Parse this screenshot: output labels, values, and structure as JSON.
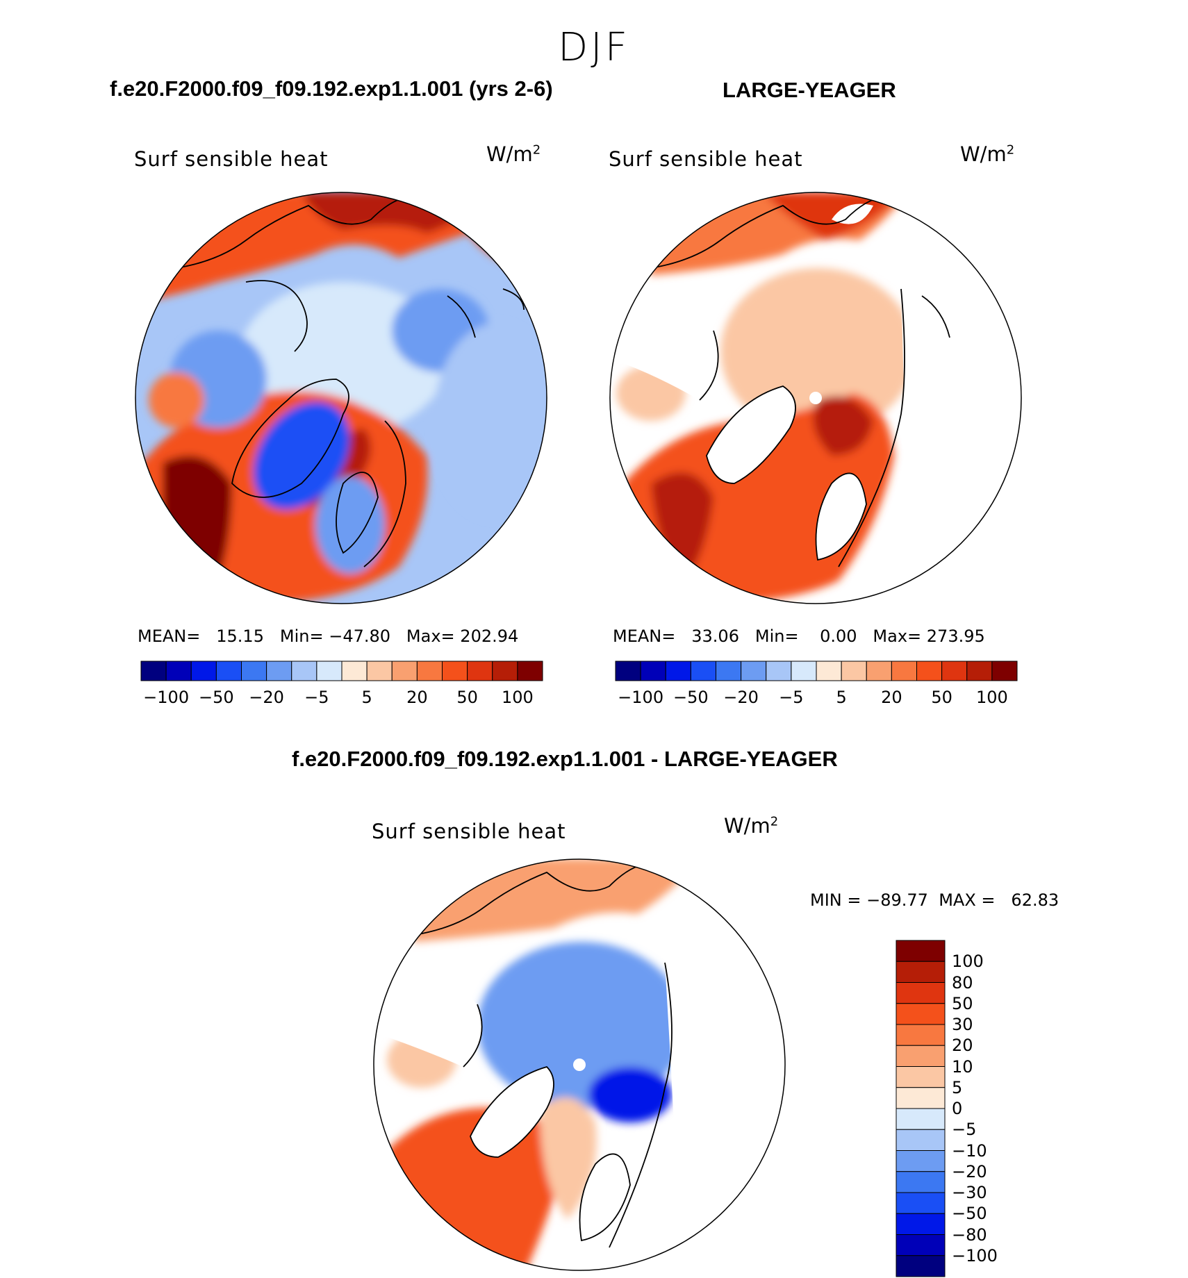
{
  "figure": {
    "season": "DJF",
    "variable": "Surf sensible heat",
    "units": "W/m",
    "units_exp": "2",
    "colors": {
      "blues": [
        "#00007f",
        "#0000b8",
        "#0018e8",
        "#1a4ff5",
        "#3c78f2",
        "#6d9cf2",
        "#a8c6f7",
        "#d7e9fb"
      ],
      "reds": [
        "#fde9d6",
        "#fbc7a4",
        "#f9a070",
        "#f87840",
        "#f4511b",
        "#df3510",
        "#b51e07",
        "#7e0000"
      ],
      "coast": "#000000"
    }
  },
  "panels": [
    {
      "title": "f.e20.F2000.f09_f09.192.exp1.1.001 (yrs 2-6)",
      "mean_label": "MEAN=",
      "mean": "15.15",
      "min_label": "Min=",
      "min": "−47.80",
      "max_label": "Max=",
      "max": "202.94",
      "colorbar_ticks": [
        "−100",
        "−50",
        "−20",
        "−5",
        "5",
        "20",
        "50",
        "100"
      ]
    },
    {
      "title": "LARGE-YEAGER",
      "mean_label": "MEAN=",
      "mean": "33.06",
      "min_label": "Min=",
      "min": "0.00",
      "max_label": "Max=",
      "max": "273.95",
      "colorbar_ticks": [
        "−100",
        "−50",
        "−20",
        "−5",
        "5",
        "20",
        "50",
        "100"
      ]
    }
  ],
  "difference": {
    "title": "f.e20.F2000.f09_f09.192.exp1.1.001 - LARGE-YEAGER",
    "min_label": "MIN =",
    "min": "−89.77",
    "max_label": "MAX =",
    "max": "62.83",
    "colorbar_levels": [
      "100",
      "80",
      "50",
      "30",
      "20",
      "10",
      "5",
      "0",
      "−5",
      "−10",
      "−20",
      "−30",
      "−50",
      "−80",
      "−100"
    ],
    "colors": [
      "#7e0000",
      "#b51e07",
      "#df3510",
      "#f4511b",
      "#f87840",
      "#f9a070",
      "#fbc7a4",
      "#fde9d6",
      "#d7e9fb",
      "#a8c6f7",
      "#6d9cf2",
      "#3c78f2",
      "#1a4ff5",
      "#0018e8",
      "#0000b8",
      "#00007f"
    ]
  }
}
